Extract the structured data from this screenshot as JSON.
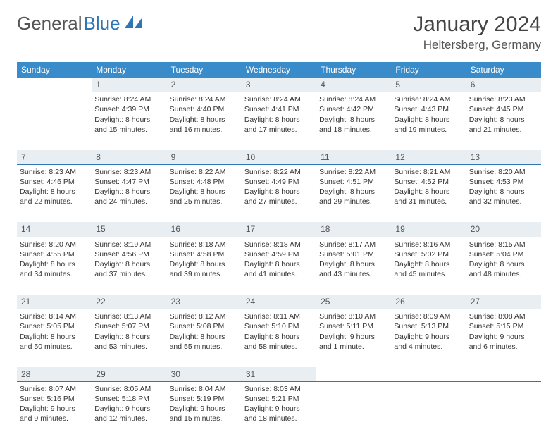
{
  "logo": {
    "text1": "General",
    "text2": "Blue"
  },
  "title": "January 2024",
  "location": "Heltersberg, Germany",
  "colors": {
    "header_bg": "#3a8bc9",
    "daynum_bg": "#e8eef2",
    "rule": "#2d77b5",
    "text": "#333333",
    "background": "#ffffff"
  },
  "weekdays": [
    "Sunday",
    "Monday",
    "Tuesday",
    "Wednesday",
    "Thursday",
    "Friday",
    "Saturday"
  ],
  "weeks": [
    {
      "nums": [
        "",
        "1",
        "2",
        "3",
        "4",
        "5",
        "6"
      ],
      "cells": [
        null,
        {
          "sunrise": "Sunrise: 8:24 AM",
          "sunset": "Sunset: 4:39 PM",
          "day1": "Daylight: 8 hours",
          "day2": "and 15 minutes."
        },
        {
          "sunrise": "Sunrise: 8:24 AM",
          "sunset": "Sunset: 4:40 PM",
          "day1": "Daylight: 8 hours",
          "day2": "and 16 minutes."
        },
        {
          "sunrise": "Sunrise: 8:24 AM",
          "sunset": "Sunset: 4:41 PM",
          "day1": "Daylight: 8 hours",
          "day2": "and 17 minutes."
        },
        {
          "sunrise": "Sunrise: 8:24 AM",
          "sunset": "Sunset: 4:42 PM",
          "day1": "Daylight: 8 hours",
          "day2": "and 18 minutes."
        },
        {
          "sunrise": "Sunrise: 8:24 AM",
          "sunset": "Sunset: 4:43 PM",
          "day1": "Daylight: 8 hours",
          "day2": "and 19 minutes."
        },
        {
          "sunrise": "Sunrise: 8:23 AM",
          "sunset": "Sunset: 4:45 PM",
          "day1": "Daylight: 8 hours",
          "day2": "and 21 minutes."
        }
      ]
    },
    {
      "nums": [
        "7",
        "8",
        "9",
        "10",
        "11",
        "12",
        "13"
      ],
      "cells": [
        {
          "sunrise": "Sunrise: 8:23 AM",
          "sunset": "Sunset: 4:46 PM",
          "day1": "Daylight: 8 hours",
          "day2": "and 22 minutes."
        },
        {
          "sunrise": "Sunrise: 8:23 AM",
          "sunset": "Sunset: 4:47 PM",
          "day1": "Daylight: 8 hours",
          "day2": "and 24 minutes."
        },
        {
          "sunrise": "Sunrise: 8:22 AM",
          "sunset": "Sunset: 4:48 PM",
          "day1": "Daylight: 8 hours",
          "day2": "and 25 minutes."
        },
        {
          "sunrise": "Sunrise: 8:22 AM",
          "sunset": "Sunset: 4:49 PM",
          "day1": "Daylight: 8 hours",
          "day2": "and 27 minutes."
        },
        {
          "sunrise": "Sunrise: 8:22 AM",
          "sunset": "Sunset: 4:51 PM",
          "day1": "Daylight: 8 hours",
          "day2": "and 29 minutes."
        },
        {
          "sunrise": "Sunrise: 8:21 AM",
          "sunset": "Sunset: 4:52 PM",
          "day1": "Daylight: 8 hours",
          "day2": "and 31 minutes."
        },
        {
          "sunrise": "Sunrise: 8:20 AM",
          "sunset": "Sunset: 4:53 PM",
          "day1": "Daylight: 8 hours",
          "day2": "and 32 minutes."
        }
      ]
    },
    {
      "nums": [
        "14",
        "15",
        "16",
        "17",
        "18",
        "19",
        "20"
      ],
      "cells": [
        {
          "sunrise": "Sunrise: 8:20 AM",
          "sunset": "Sunset: 4:55 PM",
          "day1": "Daylight: 8 hours",
          "day2": "and 34 minutes."
        },
        {
          "sunrise": "Sunrise: 8:19 AM",
          "sunset": "Sunset: 4:56 PM",
          "day1": "Daylight: 8 hours",
          "day2": "and 37 minutes."
        },
        {
          "sunrise": "Sunrise: 8:18 AM",
          "sunset": "Sunset: 4:58 PM",
          "day1": "Daylight: 8 hours",
          "day2": "and 39 minutes."
        },
        {
          "sunrise": "Sunrise: 8:18 AM",
          "sunset": "Sunset: 4:59 PM",
          "day1": "Daylight: 8 hours",
          "day2": "and 41 minutes."
        },
        {
          "sunrise": "Sunrise: 8:17 AM",
          "sunset": "Sunset: 5:01 PM",
          "day1": "Daylight: 8 hours",
          "day2": "and 43 minutes."
        },
        {
          "sunrise": "Sunrise: 8:16 AM",
          "sunset": "Sunset: 5:02 PM",
          "day1": "Daylight: 8 hours",
          "day2": "and 45 minutes."
        },
        {
          "sunrise": "Sunrise: 8:15 AM",
          "sunset": "Sunset: 5:04 PM",
          "day1": "Daylight: 8 hours",
          "day2": "and 48 minutes."
        }
      ]
    },
    {
      "nums": [
        "21",
        "22",
        "23",
        "24",
        "25",
        "26",
        "27"
      ],
      "cells": [
        {
          "sunrise": "Sunrise: 8:14 AM",
          "sunset": "Sunset: 5:05 PM",
          "day1": "Daylight: 8 hours",
          "day2": "and 50 minutes."
        },
        {
          "sunrise": "Sunrise: 8:13 AM",
          "sunset": "Sunset: 5:07 PM",
          "day1": "Daylight: 8 hours",
          "day2": "and 53 minutes."
        },
        {
          "sunrise": "Sunrise: 8:12 AM",
          "sunset": "Sunset: 5:08 PM",
          "day1": "Daylight: 8 hours",
          "day2": "and 55 minutes."
        },
        {
          "sunrise": "Sunrise: 8:11 AM",
          "sunset": "Sunset: 5:10 PM",
          "day1": "Daylight: 8 hours",
          "day2": "and 58 minutes."
        },
        {
          "sunrise": "Sunrise: 8:10 AM",
          "sunset": "Sunset: 5:11 PM",
          "day1": "Daylight: 9 hours",
          "day2": "and 1 minute."
        },
        {
          "sunrise": "Sunrise: 8:09 AM",
          "sunset": "Sunset: 5:13 PM",
          "day1": "Daylight: 9 hours",
          "day2": "and 4 minutes."
        },
        {
          "sunrise": "Sunrise: 8:08 AM",
          "sunset": "Sunset: 5:15 PM",
          "day1": "Daylight: 9 hours",
          "day2": "and 6 minutes."
        }
      ]
    },
    {
      "nums": [
        "28",
        "29",
        "30",
        "31",
        "",
        "",
        ""
      ],
      "cells": [
        {
          "sunrise": "Sunrise: 8:07 AM",
          "sunset": "Sunset: 5:16 PM",
          "day1": "Daylight: 9 hours",
          "day2": "and 9 minutes."
        },
        {
          "sunrise": "Sunrise: 8:05 AM",
          "sunset": "Sunset: 5:18 PM",
          "day1": "Daylight: 9 hours",
          "day2": "and 12 minutes."
        },
        {
          "sunrise": "Sunrise: 8:04 AM",
          "sunset": "Sunset: 5:19 PM",
          "day1": "Daylight: 9 hours",
          "day2": "and 15 minutes."
        },
        {
          "sunrise": "Sunrise: 8:03 AM",
          "sunset": "Sunset: 5:21 PM",
          "day1": "Daylight: 9 hours",
          "day2": "and 18 minutes."
        },
        null,
        null,
        null
      ]
    }
  ]
}
